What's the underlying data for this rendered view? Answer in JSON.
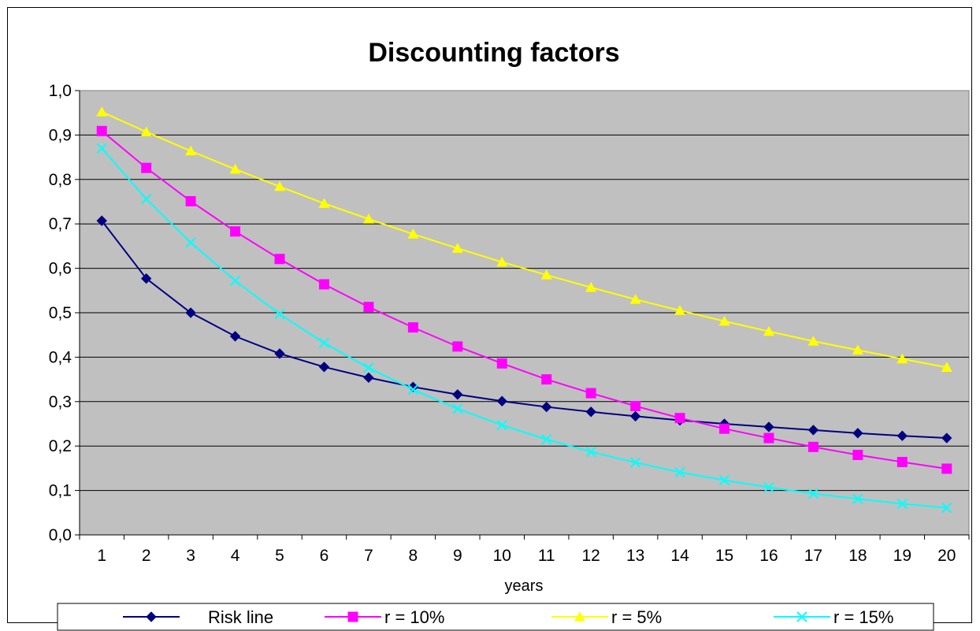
{
  "chart_data": {
    "type": "line",
    "title": "Discounting factors",
    "xlabel": "years",
    "ylabel": "",
    "x": [
      1,
      2,
      3,
      4,
      5,
      6,
      7,
      8,
      9,
      10,
      11,
      12,
      13,
      14,
      15,
      16,
      17,
      18,
      19,
      20
    ],
    "ylim": [
      0,
      1
    ],
    "yticks": [
      "0,0",
      "0,1",
      "0,2",
      "0,3",
      "0,4",
      "0,5",
      "0,6",
      "0,7",
      "0,8",
      "0,9",
      "1,0"
    ],
    "grid": true,
    "legend_position": "bottom",
    "plot_background": "#c0c0c0",
    "series": [
      {
        "name": "Risk line",
        "color": "#000080",
        "marker": "diamond",
        "values": [
          0.707,
          0.577,
          0.5,
          0.447,
          0.408,
          0.378,
          0.354,
          0.333,
          0.316,
          0.301,
          0.288,
          0.277,
          0.267,
          0.258,
          0.25,
          0.243,
          0.236,
          0.229,
          0.223,
          0.218
        ]
      },
      {
        "name": "r = 10%",
        "color": "#ff00ff",
        "marker": "square",
        "values": [
          0.909,
          0.826,
          0.751,
          0.683,
          0.621,
          0.564,
          0.513,
          0.467,
          0.424,
          0.386,
          0.35,
          0.319,
          0.29,
          0.263,
          0.239,
          0.218,
          0.198,
          0.18,
          0.164,
          0.149
        ]
      },
      {
        "name": "r = 5%",
        "color": "#ffff00",
        "marker": "triangle",
        "values": [
          0.952,
          0.907,
          0.864,
          0.823,
          0.784,
          0.746,
          0.711,
          0.677,
          0.645,
          0.614,
          0.585,
          0.557,
          0.53,
          0.505,
          0.481,
          0.458,
          0.436,
          0.416,
          0.396,
          0.377
        ]
      },
      {
        "name": "r = 15%",
        "color": "#00ffff",
        "marker": "x",
        "values": [
          0.87,
          0.756,
          0.658,
          0.572,
          0.497,
          0.432,
          0.376,
          0.327,
          0.284,
          0.247,
          0.215,
          0.187,
          0.163,
          0.141,
          0.123,
          0.107,
          0.093,
          0.081,
          0.07,
          0.061
        ]
      }
    ]
  }
}
